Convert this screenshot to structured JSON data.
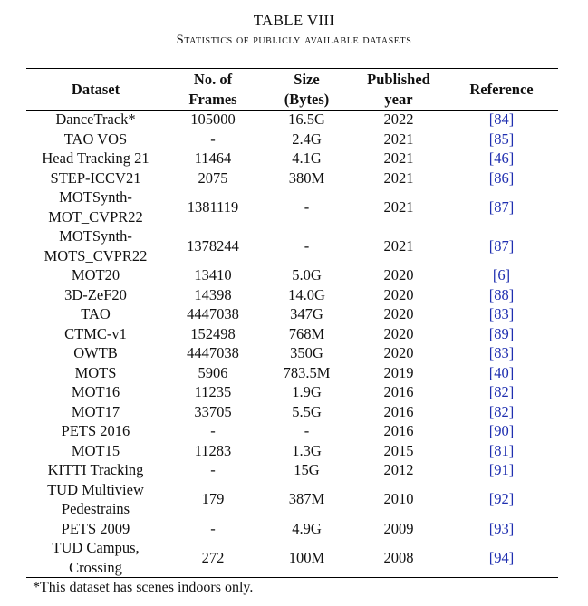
{
  "caption": {
    "label": "TABLE VIII",
    "title": "Statistics of publicly available datasets"
  },
  "headers": [
    "Dataset",
    "No. of Frames",
    "Size (Bytes)",
    "Published year",
    "Reference"
  ],
  "rows": [
    {
      "dataset": "DanceTrack*",
      "frames": "105000",
      "size": "16.5G",
      "year": "2022",
      "ref": "[84]"
    },
    {
      "dataset": "TAO VOS",
      "frames": "-",
      "size": "2.4G",
      "year": "2021",
      "ref": "[85]"
    },
    {
      "dataset": "Head Tracking 21",
      "frames": "11464",
      "size": "4.1G",
      "year": "2021",
      "ref": "[46]"
    },
    {
      "dataset": "STEP-ICCV21",
      "frames": "2075",
      "size": "380M",
      "year": "2021",
      "ref": "[86]"
    },
    {
      "dataset": "MOTSynth-MOT_CVPR22",
      "frames": "1381119",
      "size": "-",
      "year": "2021",
      "ref": "[87]"
    },
    {
      "dataset": "MOTSynth-MOTS_CVPR22",
      "frames": "1378244",
      "size": "-",
      "year": "2021",
      "ref": "[87]"
    },
    {
      "dataset": "MOT20",
      "frames": "13410",
      "size": "5.0G",
      "year": "2020",
      "ref": "[6]"
    },
    {
      "dataset": "3D-ZeF20",
      "frames": "14398",
      "size": "14.0G",
      "year": "2020",
      "ref": "[88]"
    },
    {
      "dataset": "TAO",
      "frames": "4447038",
      "size": "347G",
      "year": "2020",
      "ref": "[83]"
    },
    {
      "dataset": "CTMC-v1",
      "frames": "152498",
      "size": "768M",
      "year": "2020",
      "ref": "[89]"
    },
    {
      "dataset": "OWTB",
      "frames": "4447038",
      "size": "350G",
      "year": "2020",
      "ref": "[83]"
    },
    {
      "dataset": "MOTS",
      "frames": "5906",
      "size": "783.5M",
      "year": "2019",
      "ref": "[40]"
    },
    {
      "dataset": "MOT16",
      "frames": "11235",
      "size": "1.9G",
      "year": "2016",
      "ref": "[82]"
    },
    {
      "dataset": "MOT17",
      "frames": "33705",
      "size": "5.5G",
      "year": "2016",
      "ref": "[82]"
    },
    {
      "dataset": "PETS 2016",
      "frames": "-",
      "size": "-",
      "year": "2016",
      "ref": "[90]"
    },
    {
      "dataset": "MOT15",
      "frames": "11283",
      "size": "1.3G",
      "year": "2015",
      "ref": "[81]"
    },
    {
      "dataset": "KITTI Tracking",
      "frames": "-",
      "size": "15G",
      "year": "2012",
      "ref": "[91]"
    },
    {
      "dataset": "TUD Multiview Pedestrains",
      "frames": "179",
      "size": "387M",
      "year": "2010",
      "ref": "[92]"
    },
    {
      "dataset": "PETS 2009",
      "frames": "-",
      "size": "4.9G",
      "year": "2009",
      "ref": "[93]"
    },
    {
      "dataset": "TUD Campus, Crossing",
      "frames": "272",
      "size": "100M",
      "year": "2008",
      "ref": "[94]"
    }
  ],
  "footnote": "*This dataset has scenes indoors only."
}
